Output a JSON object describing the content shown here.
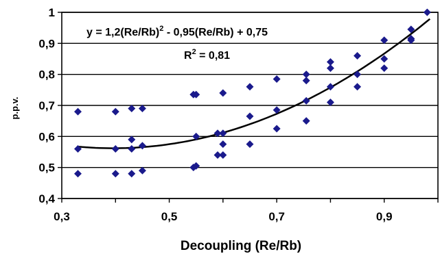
{
  "chart_data": {
    "type": "scatter",
    "xlabel": "Decoupling (Re/Rb)",
    "ylabel": "p.p.v.",
    "xlim": [
      0.3,
      1.0
    ],
    "ylim": [
      0.4,
      1.0
    ],
    "x_ticks": [
      "0,3",
      "0,5",
      "0,7",
      "0,9"
    ],
    "y_ticks": [
      "0,4",
      "0,5",
      "0,6",
      "0,7",
      "0,8",
      "0,9",
      "1"
    ],
    "grid": "horizontal",
    "marker_color": "#1a1a8c",
    "trendline": {
      "type": "polynomial",
      "a": 1.2,
      "b": -0.95,
      "c": 0.75,
      "equation_label": "y = 1,2(Re/Rb)",
      "equation_sup": "2",
      "equation_rest": " - 0,95(Re/Rb) + 0,75",
      "r2_label": "R",
      "r2_sup": "2",
      "r2_rest": " = 0,81"
    },
    "points": [
      [
        0.33,
        0.68
      ],
      [
        0.33,
        0.56
      ],
      [
        0.33,
        0.48
      ],
      [
        0.4,
        0.68
      ],
      [
        0.4,
        0.56
      ],
      [
        0.4,
        0.48
      ],
      [
        0.43,
        0.69
      ],
      [
        0.43,
        0.59
      ],
      [
        0.43,
        0.56
      ],
      [
        0.43,
        0.48
      ],
      [
        0.45,
        0.69
      ],
      [
        0.45,
        0.57
      ],
      [
        0.45,
        0.49
      ],
      [
        0.545,
        0.735
      ],
      [
        0.55,
        0.735
      ],
      [
        0.55,
        0.6
      ],
      [
        0.545,
        0.5
      ],
      [
        0.55,
        0.505
      ],
      [
        0.59,
        0.61
      ],
      [
        0.6,
        0.61
      ],
      [
        0.59,
        0.54
      ],
      [
        0.6,
        0.54
      ],
      [
        0.6,
        0.575
      ],
      [
        0.6,
        0.74
      ],
      [
        0.65,
        0.76
      ],
      [
        0.65,
        0.665
      ],
      [
        0.65,
        0.575
      ],
      [
        0.7,
        0.785
      ],
      [
        0.7,
        0.685
      ],
      [
        0.7,
        0.625
      ],
      [
        0.755,
        0.8
      ],
      [
        0.755,
        0.78
      ],
      [
        0.755,
        0.715
      ],
      [
        0.755,
        0.65
      ],
      [
        0.8,
        0.84
      ],
      [
        0.8,
        0.82
      ],
      [
        0.8,
        0.76
      ],
      [
        0.8,
        0.71
      ],
      [
        0.85,
        0.86
      ],
      [
        0.85,
        0.8
      ],
      [
        0.85,
        0.76
      ],
      [
        0.9,
        0.91
      ],
      [
        0.9,
        0.85
      ],
      [
        0.9,
        0.82
      ],
      [
        0.95,
        0.945
      ],
      [
        0.95,
        0.915
      ],
      [
        0.95,
        0.91
      ],
      [
        0.98,
        1.0
      ]
    ]
  }
}
